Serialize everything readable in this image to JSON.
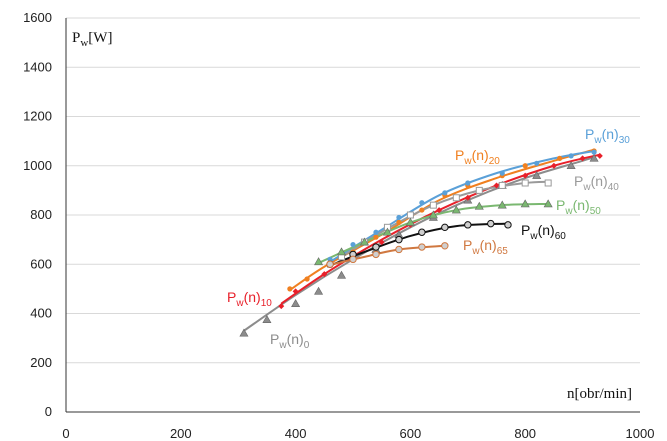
{
  "chart_data": {
    "type": "scatter",
    "xlabel": "n[obr/min]",
    "ylabel": {
      "main": "P",
      "sub": "w",
      "rest": "[W]"
    },
    "xlim": [
      0,
      1000
    ],
    "ylim": [
      0,
      1600
    ],
    "xticks": [
      0,
      200,
      400,
      600,
      800,
      1000
    ],
    "yticks": [
      0,
      200,
      400,
      600,
      800,
      1000,
      1200,
      1400,
      1600
    ],
    "grid": "horizontal",
    "series": [
      {
        "name": {
          "base": "P",
          "sub1": "w",
          "mid": "(n)",
          "sub2": "0"
        },
        "color": "#8c8c8c",
        "marker": "triangle",
        "points": [
          [
            310,
            320
          ],
          [
            350,
            375
          ],
          [
            400,
            440
          ],
          [
            440,
            490
          ],
          [
            480,
            555
          ],
          [
            540,
            660
          ],
          [
            580,
            720
          ],
          [
            640,
            790
          ],
          [
            700,
            860
          ],
          [
            760,
            920
          ],
          [
            820,
            960
          ],
          [
            880,
            1000
          ],
          [
            920,
            1030
          ]
        ],
        "fit": [
          [
            310,
            330
          ],
          [
            400,
            475
          ],
          [
            500,
            620
          ],
          [
            600,
            750
          ],
          [
            700,
            860
          ],
          [
            800,
            950
          ],
          [
            900,
            1020
          ],
          [
            920,
            1035
          ]
        ]
      },
      {
        "name": {
          "base": "P",
          "sub1": "w",
          "mid": "(n)",
          "sub2": "10"
        },
        "color": "#e8202a",
        "marker": "diamond",
        "points": [
          [
            375,
            430
          ],
          [
            400,
            490
          ],
          [
            450,
            560
          ],
          [
            500,
            620
          ],
          [
            550,
            690
          ],
          [
            600,
            760
          ],
          [
            650,
            820
          ],
          [
            700,
            870
          ],
          [
            750,
            920
          ],
          [
            800,
            960
          ],
          [
            850,
            1000
          ],
          [
            900,
            1030
          ],
          [
            930,
            1040
          ]
        ],
        "fit": [
          [
            375,
            440
          ],
          [
            450,
            560
          ],
          [
            550,
            700
          ],
          [
            650,
            820
          ],
          [
            750,
            920
          ],
          [
            850,
            1000
          ],
          [
            930,
            1045
          ]
        ]
      },
      {
        "name": {
          "base": "P",
          "sub1": "w",
          "mid": "(n)",
          "sub2": "20"
        },
        "color": "#f08020",
        "marker": "circle",
        "points": [
          [
            390,
            500
          ],
          [
            420,
            540
          ],
          [
            460,
            600
          ],
          [
            500,
            650
          ],
          [
            540,
            710
          ],
          [
            580,
            770
          ],
          [
            620,
            820
          ],
          [
            660,
            880
          ],
          [
            700,
            920
          ],
          [
            760,
            960
          ],
          [
            800,
            1000
          ],
          [
            860,
            1030
          ],
          [
            920,
            1060
          ]
        ],
        "fit": [
          [
            390,
            495
          ],
          [
            450,
            590
          ],
          [
            550,
            720
          ],
          [
            650,
            860
          ],
          [
            750,
            950
          ],
          [
            850,
            1020
          ],
          [
            920,
            1065
          ]
        ]
      },
      {
        "name": {
          "base": "P",
          "sub1": "w",
          "mid": "(n)",
          "sub2": "30"
        },
        "color": "#5aa0d8",
        "marker": "circle",
        "points": [
          [
            460,
            620
          ],
          [
            500,
            680
          ],
          [
            540,
            730
          ],
          [
            580,
            790
          ],
          [
            620,
            850
          ],
          [
            660,
            890
          ],
          [
            700,
            930
          ],
          [
            760,
            970
          ],
          [
            820,
            1010
          ],
          [
            880,
            1040
          ],
          [
            920,
            1055
          ]
        ],
        "fit": [
          [
            460,
            610
          ],
          [
            550,
            740
          ],
          [
            650,
            880
          ],
          [
            750,
            970
          ],
          [
            850,
            1030
          ],
          [
            920,
            1060
          ]
        ]
      },
      {
        "name": {
          "base": "P",
          "sub1": "w",
          "mid": "(n)",
          "sub2": "40"
        },
        "color": "#9a9a9a",
        "marker": "square",
        "points": [
          [
            480,
            630
          ],
          [
            520,
            690
          ],
          [
            560,
            750
          ],
          [
            600,
            800
          ],
          [
            640,
            840
          ],
          [
            680,
            870
          ],
          [
            720,
            900
          ],
          [
            760,
            920
          ],
          [
            800,
            930
          ],
          [
            840,
            930
          ]
        ],
        "fit": [
          [
            480,
            630
          ],
          [
            560,
            745
          ],
          [
            640,
            840
          ],
          [
            720,
            900
          ],
          [
            800,
            930
          ],
          [
            840,
            935
          ]
        ]
      },
      {
        "name": {
          "base": "P",
          "sub1": "w",
          "mid": "(n)",
          "sub2": "50"
        },
        "color": "#7ab870",
        "marker": "triangle",
        "points": [
          [
            440,
            610
          ],
          [
            480,
            650
          ],
          [
            520,
            690
          ],
          [
            560,
            730
          ],
          [
            600,
            770
          ],
          [
            640,
            800
          ],
          [
            680,
            820
          ],
          [
            720,
            835
          ],
          [
            760,
            840
          ],
          [
            800,
            845
          ],
          [
            840,
            845
          ]
        ],
        "fit": [
          [
            440,
            605
          ],
          [
            520,
            690
          ],
          [
            600,
            770
          ],
          [
            680,
            820
          ],
          [
            760,
            840
          ],
          [
            840,
            845
          ]
        ]
      },
      {
        "name": {
          "base": "P",
          "sub1": "w",
          "mid": "(n)",
          "sub2": "60"
        },
        "color": "#111111",
        "marker": "circle-hollow",
        "points": [
          [
            460,
            600
          ],
          [
            500,
            640
          ],
          [
            540,
            670
          ],
          [
            580,
            700
          ],
          [
            620,
            730
          ],
          [
            660,
            750
          ],
          [
            700,
            760
          ],
          [
            740,
            765
          ],
          [
            770,
            760
          ]
        ],
        "fit": [
          [
            455,
            590
          ],
          [
            520,
            650
          ],
          [
            600,
            715
          ],
          [
            680,
            755
          ],
          [
            770,
            765
          ]
        ]
      },
      {
        "name": {
          "base": "P",
          "sub1": "w",
          "mid": "(n)",
          "sub2": "65"
        },
        "color": "#d07840",
        "marker": "circle-hollow",
        "points": [
          [
            460,
            600
          ],
          [
            500,
            620
          ],
          [
            540,
            640
          ],
          [
            580,
            660
          ],
          [
            620,
            670
          ],
          [
            660,
            675
          ]
        ],
        "fit": [
          [
            455,
            595
          ],
          [
            520,
            630
          ],
          [
            580,
            660
          ],
          [
            660,
            675
          ]
        ]
      }
    ]
  }
}
